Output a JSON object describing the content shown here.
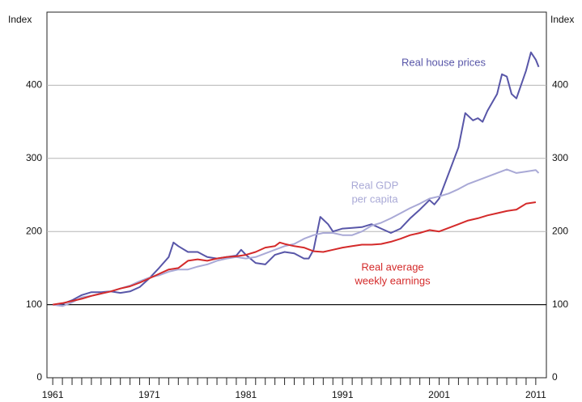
{
  "chart_data": {
    "type": "line",
    "ylabel": "Index",
    "y2label": "Index",
    "xlim": [
      1960.4,
      2012.1
    ],
    "xticks": [
      1961,
      1971,
      1981,
      1991,
      2001,
      2011
    ],
    "xminorticks": [
      1961,
      1962,
      1963,
      1964,
      1965,
      1966,
      1967,
      1968,
      1969,
      1970,
      1971,
      1972,
      1973,
      1974,
      1975,
      1976,
      1977,
      1978,
      1979,
      1980,
      1981,
      1982,
      1983,
      1984,
      1985,
      1986,
      1987,
      1988,
      1989,
      1990,
      1991,
      1992,
      1993,
      1994,
      1995,
      1996,
      1997,
      1998,
      1999,
      2000,
      2001,
      2002,
      2003,
      2004,
      2005,
      2006,
      2007,
      2008,
      2009,
      2010,
      2011
    ],
    "ylim": [
      0,
      500
    ],
    "yticks": [
      0,
      100,
      200,
      300,
      400
    ],
    "y2lim": [
      0,
      500
    ],
    "y2ticks": [
      0,
      100,
      200,
      300,
      400
    ],
    "grid": true,
    "baseline": 100,
    "series": [
      {
        "name": [
          "Real house prices"
        ],
        "color": "#5856a8",
        "x": [
          1961,
          1962,
          1963,
          1964,
          1965,
          1966,
          1967,
          1968,
          1969,
          1970,
          1971,
          1972,
          1973,
          1973.5,
          1974,
          1975,
          1976,
          1977,
          1978,
          1979,
          1980,
          1980.5,
          1981,
          1982,
          1983,
          1984,
          1985,
          1986,
          1987,
          1987.5,
          1988,
          1988.7,
          1989.5,
          1990,
          1991,
          1992,
          1993,
          1994,
          1995,
          1996,
          1997,
          1998,
          1999,
          2000,
          2000.5,
          2001,
          2002,
          2003,
          2003.7,
          2004.5,
          2005,
          2005.5,
          2006,
          2007,
          2007.5,
          2008,
          2008.5,
          2009,
          2010,
          2010.5,
          2011,
          2011.3
        ],
        "values": [
          100,
          101,
          106,
          113,
          117,
          117,
          118,
          116,
          118,
          124,
          136,
          150,
          165,
          185,
          180,
          172,
          172,
          165,
          163,
          165,
          167,
          175,
          168,
          157,
          155,
          168,
          172,
          170,
          163,
          163,
          175,
          220,
          210,
          200,
          204,
          205,
          206,
          210,
          204,
          198,
          204,
          218,
          230,
          243,
          237,
          245,
          280,
          315,
          362,
          352,
          355,
          350,
          365,
          388,
          415,
          412,
          388,
          382,
          420,
          445,
          435,
          425
        ]
      },
      {
        "name": [
          "Real GDP",
          "per capita"
        ],
        "color": "#a9a9d6",
        "x": [
          1961,
          1962,
          1963,
          1964,
          1965,
          1966,
          1967,
          1968,
          1969,
          1970,
          1971,
          1972,
          1973,
          1974,
          1975,
          1976,
          1977,
          1978,
          1979,
          1980,
          1981,
          1982,
          1983,
          1984,
          1985,
          1986,
          1987,
          1988,
          1989,
          1990,
          1991,
          1992,
          1993,
          1994,
          1995,
          1996,
          1997,
          1998,
          1999,
          2000,
          2001,
          2002,
          2003,
          2004,
          2005,
          2006,
          2007,
          2008,
          2009,
          2010,
          2011,
          2011.3
        ],
        "values": [
          100,
          98,
          103,
          110,
          112,
          115,
          118,
          122,
          126,
          132,
          137,
          140,
          145,
          148,
          148,
          152,
          155,
          160,
          163,
          165,
          163,
          165,
          170,
          175,
          180,
          183,
          190,
          195,
          198,
          198,
          195,
          195,
          200,
          208,
          212,
          218,
          225,
          232,
          238,
          245,
          248,
          252,
          258,
          265,
          270,
          275,
          280,
          285,
          280,
          282,
          284,
          280
        ]
      },
      {
        "name": [
          "Real average",
          "weekly earnings"
        ],
        "color": "#d42a2a",
        "x": [
          1961,
          1962,
          1963,
          1964,
          1965,
          1966,
          1967,
          1968,
          1969,
          1970,
          1971,
          1972,
          1973,
          1974,
          1975,
          1976,
          1977,
          1978,
          1979,
          1980,
          1981,
          1982,
          1983,
          1984,
          1984.5,
          1985,
          1986,
          1987,
          1988,
          1989,
          1990,
          1991,
          1992,
          1993,
          1994,
          1995,
          1996,
          1997,
          1998,
          1999,
          2000,
          2001,
          2002,
          2003,
          2004,
          2005,
          2006,
          2007,
          2008,
          2009,
          2010,
          2011
        ],
        "values": [
          100,
          102,
          105,
          108,
          112,
          115,
          118,
          122,
          125,
          130,
          136,
          142,
          148,
          150,
          160,
          162,
          160,
          163,
          165,
          166,
          168,
          172,
          178,
          180,
          185,
          183,
          180,
          178,
          173,
          172,
          175,
          178,
          180,
          182,
          182,
          183,
          186,
          190,
          195,
          198,
          202,
          200,
          205,
          210,
          215,
          218,
          222,
          225,
          228,
          230,
          238,
          240
        ]
      }
    ]
  }
}
